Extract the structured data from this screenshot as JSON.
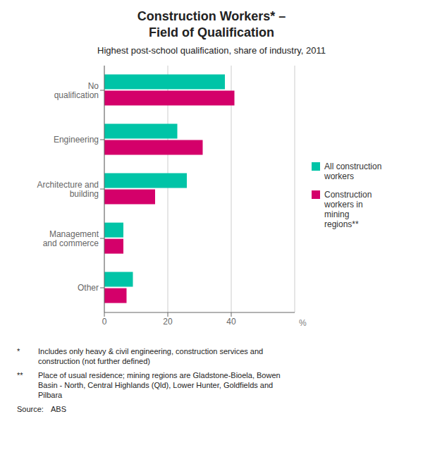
{
  "chart_data": {
    "type": "bar",
    "orientation": "horizontal",
    "title": "Construction Workers* –\nField of Qualification",
    "subtitle": "Highest post-school qualification, share of industry, 2011",
    "categories": [
      "Other",
      "Management\nand commerce",
      "Architecture and\nbuilding",
      "Engineering",
      "No\nqualification"
    ],
    "series": [
      {
        "name": "All construction\nworkers",
        "color": "#00C4A7",
        "values": [
          9,
          6,
          26,
          23,
          38
        ]
      },
      {
        "name": "Construction\nworkers in\nmining\nregions**",
        "color": "#D4006A",
        "values": [
          7,
          6,
          16,
          31,
          41
        ]
      }
    ],
    "xlabel": "%",
    "xlim": [
      0,
      60
    ],
    "xticks": [
      0,
      20,
      40
    ],
    "grid": true,
    "legend": "right",
    "annotations": [
      "*",
      "Includes only heavy & civil engineering, construction services and\nconstruction (not further defined)",
      "**",
      "Place of usual residence; mining regions are Gladstone-Bioela, Bowen\nBasin - North, Central Highlands (Qld), Lower Hunter, Goldfields and\nPilbara",
      "Source:",
      "ABS"
    ]
  }
}
